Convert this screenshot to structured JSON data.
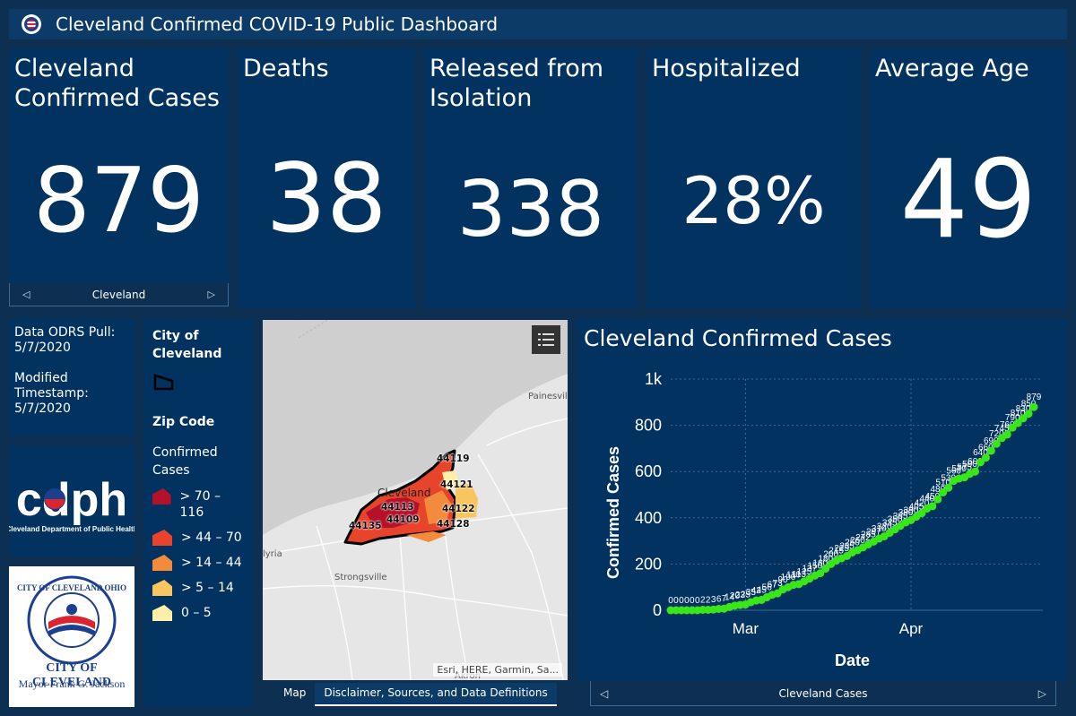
{
  "header": {
    "title": "Cleveland Confirmed COVID-19 Public Dashboard"
  },
  "stats": [
    {
      "label": "Cleveland Confirmed Cases",
      "value": "879"
    },
    {
      "label": "Deaths",
      "value": "38"
    },
    {
      "label": "Released from Isolation",
      "value": "338"
    },
    {
      "label": "Hospitalized",
      "value": "28%"
    },
    {
      "label": "Average Age",
      "value": "49"
    }
  ],
  "cases_nav": {
    "label": "Cleveland"
  },
  "data_info": {
    "pull_label": "Data ODRS Pull:",
    "pull_date": "5/7/2020",
    "modified_label": "Modified Timestamp:",
    "modified_date": "5/7/2020"
  },
  "cdph": {
    "logo_text": "cdph",
    "subtitle": "Cleveland Department of Public Health"
  },
  "city": {
    "seal_text": "CITY OF CLEVELAND OHIO",
    "name": "CITY OF CLEVELAND",
    "mayor": "Mayor Frank G. Jackson"
  },
  "legend": {
    "city_title": "City of Cleveland",
    "zip_title": "Zip Code",
    "subtitle": "Confirmed Cases",
    "classes": [
      {
        "label": "> 70 – 116",
        "color": "#b3122a"
      },
      {
        "label": "> 44 – 70",
        "color": "#e8432b"
      },
      {
        "label": "> 14 – 44",
        "color": "#f48a3c"
      },
      {
        "label": "> 5 – 14",
        "color": "#f9c55e"
      },
      {
        "label": "0 – 5",
        "color": "#fdf0a6"
      }
    ]
  },
  "map": {
    "places": {
      "painesville": "Painesville",
      "cleveland": "Cleveland",
      "elyria": "lyria",
      "strongsville": "Strongsville",
      "akron": "Akron"
    },
    "zips": [
      "44119",
      "44121",
      "44113",
      "44122",
      "44109",
      "44135",
      "44128"
    ],
    "attribution": "Esri, HERE, Garmin, Sa...",
    "layers_icon": "layer-list-icon"
  },
  "tabs": [
    {
      "label": "Map"
    },
    {
      "label": "Disclaimer, Sources, and Data Definitions"
    }
  ],
  "chart_title": "Cleveland Confirmed Cases",
  "chart_nav": {
    "label": "Cleveland Cases"
  },
  "chart_data": {
    "type": "line",
    "xlabel": "Date",
    "ylabel": "Confirmed Cases",
    "ylim": [
      0,
      1000
    ],
    "y_ticks": [
      0,
      200,
      400,
      600,
      800,
      1000
    ],
    "y_tick_labels": [
      "0",
      "200",
      "400",
      "600",
      "800",
      "1k"
    ],
    "x_ticks": [
      {
        "label": "Mar",
        "index": 14
      },
      {
        "label": "Apr",
        "index": 45
      }
    ],
    "grid": true,
    "color": "#39e619",
    "series": [
      {
        "values": [
          0,
          0,
          0,
          0,
          0,
          0,
          2,
          2,
          3,
          6,
          7,
          14,
          20,
          23,
          25,
          35,
          42,
          45,
          56,
          67,
          73,
          90,
          100,
          110,
          113,
          125,
          137,
          150,
          160,
          180,
          200,
          215,
          225,
          235,
          250,
          260,
          272,
          285,
          297,
          310,
          320,
          335,
          350,
          365,
          380,
          390,
          405,
          420,
          440,
          450,
          480,
          510,
          530,
          560,
          570,
          575,
          590,
          600,
          640,
          660,
          690,
          720,
          745,
          760,
          790,
          810,
          830,
          850,
          879
        ],
        "labels": [
          "0",
          "0",
          "0",
          "0",
          "0",
          "0",
          "2",
          "2",
          "3",
          "6",
          "7",
          "14",
          "20",
          "23",
          "25",
          "35",
          "42",
          "45",
          "56",
          "67",
          "73",
          "90",
          "100",
          "110",
          "113",
          "125",
          "137",
          "150",
          "160",
          "180",
          "200",
          "215",
          "225",
          "235",
          "250",
          "260",
          "272",
          "285",
          "297",
          "310",
          "320",
          "335",
          "350",
          "365",
          "380",
          "390",
          "405",
          "420",
          "440",
          "450",
          "480",
          "510",
          "530",
          "560",
          "570",
          "575",
          "590",
          "600",
          "640",
          "660",
          "690",
          "720",
          "745",
          "760",
          "790",
          "810",
          "830",
          "850",
          "879"
        ]
      }
    ]
  },
  "colors": {
    "background": "#0d2f52",
    "panel": "#023260",
    "line": "#39e619"
  }
}
